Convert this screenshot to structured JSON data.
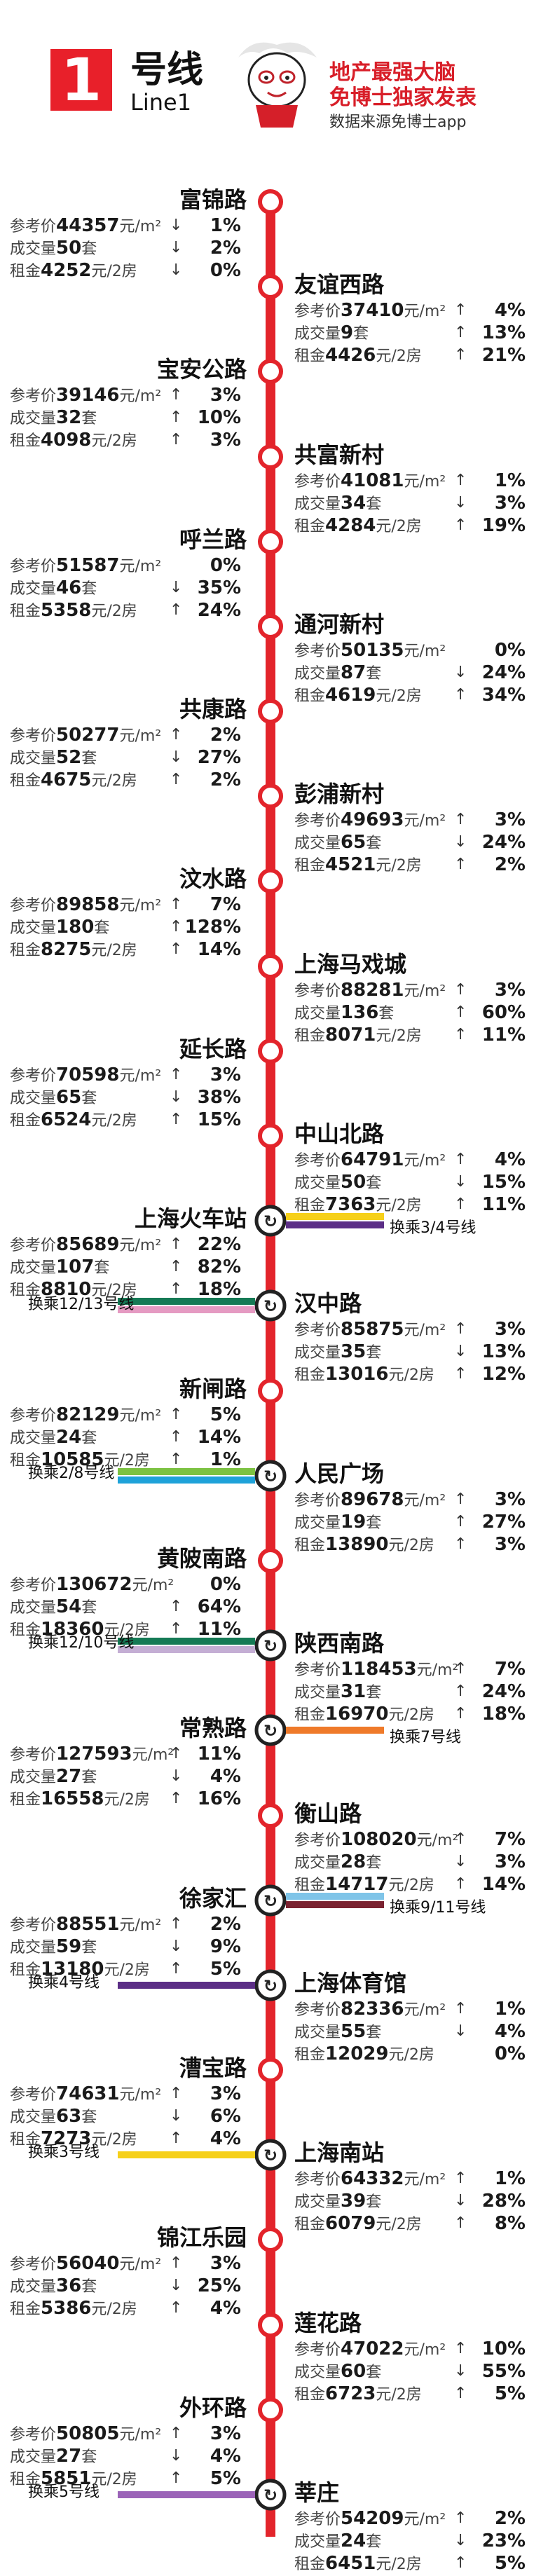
{
  "header": {
    "line_number": "1",
    "line_name": "号线",
    "line_en": "Line1",
    "brand_line1": "地产最强大脑",
    "brand_line2": "免博士独家发表",
    "brand_sub": "数据来源免博士app"
  },
  "labels": {
    "price": "参考价",
    "volume": "成交量",
    "rent": "租金",
    "price_unit": "元/m²",
    "volume_unit": "套",
    "rent_unit": "元/2房"
  },
  "colors": {
    "line1": "#e3242b",
    "line3": "#f6d01a",
    "line4": "#5b2e86",
    "line2": "#7cc242",
    "line8": "#1ea2d9",
    "line10": "#c4aed4",
    "line12": "#157a55",
    "line13": "#e59ac2",
    "line7": "#ef7a2a",
    "line9": "#7fc4e8",
    "line11": "#7a2230",
    "line5": "#9b63b8"
  },
  "stations": [
    {
      "name": "富锦路",
      "side": "left",
      "stats": [
        [
          "44357",
          "↓",
          "1%"
        ],
        [
          "50",
          "↓",
          "2%"
        ],
        [
          "4252",
          "↓",
          "0%"
        ]
      ]
    },
    {
      "name": "友谊西路",
      "side": "right",
      "stats": [
        [
          "37410",
          "↑",
          "4%"
        ],
        [
          "9",
          "↑",
          "13%"
        ],
        [
          "4426",
          "↑",
          "21%"
        ]
      ]
    },
    {
      "name": "宝安公路",
      "side": "left",
      "stats": [
        [
          "39146",
          "↑",
          "3%"
        ],
        [
          "32",
          "↑",
          "10%"
        ],
        [
          "4098",
          "↑",
          "3%"
        ]
      ]
    },
    {
      "name": "共富新村",
      "side": "right",
      "stats": [
        [
          "41081",
          "↑",
          "1%"
        ],
        [
          "34",
          "↓",
          "3%"
        ],
        [
          "4284",
          "↑",
          "19%"
        ]
      ]
    },
    {
      "name": "呼兰路",
      "side": "left",
      "stats": [
        [
          "51587",
          "",
          ""
        ],
        [
          "46",
          "↓",
          "35%"
        ],
        [
          "5358",
          "↑",
          "24%"
        ]
      ],
      "note0": "0%"
    },
    {
      "name": "通河新村",
      "side": "right",
      "stats": [
        [
          "50135",
          "",
          "0%"
        ],
        [
          "87",
          "↓",
          "24%"
        ],
        [
          "4619",
          "↑",
          "34%"
        ]
      ]
    },
    {
      "name": "共康路",
      "side": "left",
      "stats": [
        [
          "50277",
          "↑",
          "2%"
        ],
        [
          "52",
          "↓",
          "27%"
        ],
        [
          "4675",
          "↑",
          "2%"
        ]
      ]
    },
    {
      "name": "彭浦新村",
      "side": "right",
      "stats": [
        [
          "49693",
          "↑",
          "3%"
        ],
        [
          "65",
          "↓",
          "24%"
        ],
        [
          "4521",
          "↑",
          "2%"
        ]
      ]
    },
    {
      "name": "汶水路",
      "side": "left",
      "stats": [
        [
          "89858",
          "↑",
          "7%"
        ],
        [
          "180",
          "↑",
          "128%"
        ],
        [
          "8275",
          "↑",
          "14%"
        ]
      ]
    },
    {
      "name": "上海马戏城",
      "side": "right",
      "stats": [
        [
          "88281",
          "↑",
          "3%"
        ],
        [
          "136",
          "↑",
          "60%"
        ],
        [
          "8071",
          "↑",
          "11%"
        ]
      ]
    },
    {
      "name": "延长路",
      "side": "left",
      "stats": [
        [
          "70598",
          "↑",
          "3%"
        ],
        [
          "65",
          "↓",
          "38%"
        ],
        [
          "6524",
          "↑",
          "15%"
        ]
      ]
    },
    {
      "name": "中山北路",
      "side": "right",
      "stats": [
        [
          "64791",
          "↑",
          "4%"
        ],
        [
          "50",
          "↓",
          "15%"
        ],
        [
          "7363",
          "↑",
          "11%"
        ]
      ]
    },
    {
      "name": "上海火车站",
      "side": "left",
      "stats": [
        [
          "85689",
          "↑",
          "22%"
        ],
        [
          "107",
          "↑",
          "82%"
        ],
        [
          "8810",
          "↑",
          "18%"
        ]
      ]
    },
    {
      "name": "汉中路",
      "side": "right",
      "stats": [
        [
          "85875",
          "↑",
          "3%"
        ],
        [
          "35",
          "↓",
          "13%"
        ],
        [
          "13016",
          "↑",
          "12%"
        ]
      ]
    },
    {
      "name": "新闸路",
      "side": "left",
      "stats": [
        [
          "82129",
          "↑",
          "5%"
        ],
        [
          "24",
          "↑",
          "14%"
        ],
        [
          "10585",
          "↑",
          "1%"
        ]
      ]
    },
    {
      "name": "人民广场",
      "side": "right",
      "stats": [
        [
          "89678",
          "↑",
          "3%"
        ],
        [
          "19",
          "↑",
          "27%"
        ],
        [
          "13890",
          "↑",
          "3%"
        ]
      ]
    },
    {
      "name": "黄陂南路",
      "side": "left",
      "stats": [
        [
          "130672",
          "",
          "0%"
        ],
        [
          "54",
          "↑",
          "64%"
        ],
        [
          "18360",
          "↑",
          "11%"
        ]
      ]
    },
    {
      "name": "陕西南路",
      "side": "right",
      "stats": [
        [
          "118453",
          "↑",
          "7%"
        ],
        [
          "31",
          "↑",
          "24%"
        ],
        [
          "16970",
          "↑",
          "18%"
        ]
      ]
    },
    {
      "name": "常熟路",
      "side": "left",
      "stats": [
        [
          "127593",
          "↑",
          "11%"
        ],
        [
          "27",
          "↓",
          "4%"
        ],
        [
          "16558",
          "↑",
          "16%"
        ]
      ]
    },
    {
      "name": "衡山路",
      "side": "right",
      "stats": [
        [
          "108020",
          "↑",
          "7%"
        ],
        [
          "28",
          "↓",
          "3%"
        ],
        [
          "14717",
          "↑",
          "14%"
        ]
      ]
    },
    {
      "name": "徐家汇",
      "side": "left",
      "stats": [
        [
          "88551",
          "↑",
          "2%"
        ],
        [
          "59",
          "↓",
          "9%"
        ],
        [
          "13180",
          "↑",
          "5%"
        ]
      ]
    },
    {
      "name": "上海体育馆",
      "side": "right",
      "stats": [
        [
          "82336",
          "↑",
          "1%"
        ],
        [
          "55",
          "↓",
          "4%"
        ],
        [
          "12029",
          "",
          "0%"
        ]
      ]
    },
    {
      "name": "漕宝路",
      "side": "left",
      "stats": [
        [
          "74631",
          "↑",
          "3%"
        ],
        [
          "63",
          "↓",
          "6%"
        ],
        [
          "7273",
          "↑",
          "4%"
        ]
      ]
    },
    {
      "name": "上海南站",
      "side": "right",
      "stats": [
        [
          "64332",
          "↑",
          "1%"
        ],
        [
          "39",
          "↓",
          "28%"
        ],
        [
          "6079",
          "↑",
          "8%"
        ]
      ]
    },
    {
      "name": "锦江乐园",
      "side": "left",
      "stats": [
        [
          "56040",
          "↑",
          "3%"
        ],
        [
          "36",
          "↓",
          "25%"
        ],
        [
          "5386",
          "↑",
          "4%"
        ]
      ]
    },
    {
      "name": "莲花路",
      "side": "right",
      "stats": [
        [
          "47022",
          "↑",
          "10%"
        ],
        [
          "60",
          "↓",
          "55%"
        ],
        [
          "6723",
          "↑",
          "5%"
        ]
      ]
    },
    {
      "name": "外环路",
      "side": "left",
      "stats": [
        [
          "50805",
          "↑",
          "3%"
        ],
        [
          "27",
          "↓",
          "4%"
        ],
        [
          "5851",
          "↑",
          "5%"
        ]
      ]
    },
    {
      "name": "莘庄",
      "side": "right",
      "stats": [
        [
          "54209",
          "↑",
          "2%"
        ],
        [
          "24",
          "↓",
          "23%"
        ],
        [
          "6451",
          "↑",
          "5%"
        ]
      ]
    }
  ],
  "transfers": {
    "t_34": "换乘3/4号线",
    "t_1213": "换乘12/13号线",
    "t_28": "换乘2/8号线",
    "t_1210": "换乘12/10号线",
    "t_7": "换乘7号线",
    "t_911": "换乘9/11号线",
    "t_4": "换乘4号线",
    "t_3": "换乘3号线",
    "t_5": "换乘5号线"
  }
}
